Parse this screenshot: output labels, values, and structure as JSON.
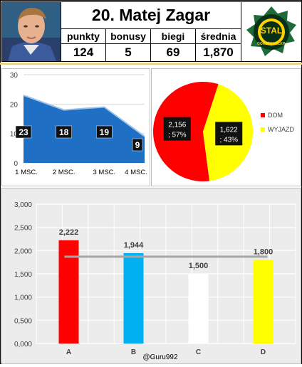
{
  "header": {
    "title": "20. Matej Zagar",
    "columns": [
      "punkty",
      "bonusy",
      "biegi",
      "średnia"
    ],
    "values": [
      "124",
      "5",
      "69",
      "1,870"
    ],
    "logo_text": "STAL",
    "logo_subtext": "GORZÓW WLKP."
  },
  "colors": {
    "area_fill": "#1f6fc5",
    "area_line": "#9ec3e6",
    "pie_dom": "#ff0000",
    "pie_wyjazd": "#ffff00",
    "bar_a": "#ff0000",
    "bar_b": "#00b0f0",
    "bar_c": "#ffffff",
    "bar_d": "#ffff00",
    "avg_line": "#a6a6a6"
  },
  "chart_data": [
    {
      "type": "area",
      "categories": [
        "1 MSC.",
        "2 MSC.",
        "3 MSC.",
        "4 MSC."
      ],
      "values": [
        23,
        18,
        19,
        9
      ],
      "data_labels": [
        "23",
        "18",
        "19",
        "9"
      ],
      "ylim": [
        0,
        30
      ],
      "yticks": [
        "0",
        "10",
        "20",
        "30"
      ],
      "grid": true
    },
    {
      "type": "pie",
      "labels": [
        "DOM",
        "WYJAZD"
      ],
      "values": [
        2.156,
        1.622
      ],
      "percent": [
        57,
        43
      ],
      "data_labels": [
        [
          "2,156",
          "; 57%"
        ],
        [
          "1,622",
          "; 43%"
        ]
      ],
      "legend": "right"
    },
    {
      "type": "bar",
      "categories": [
        "A",
        "B",
        "C",
        "D"
      ],
      "values": [
        2.222,
        1.944,
        1.5,
        1.8
      ],
      "data_labels": [
        "2,222",
        "1,944",
        "1,500",
        "1,800"
      ],
      "reference_line": 1.87,
      "ylim": [
        0,
        3
      ],
      "yticks": [
        "0,000",
        "0,500",
        "1,000",
        "1,500",
        "2,000",
        "2,500",
        "3,000"
      ],
      "grid": true
    }
  ],
  "watermark": "@Guru992"
}
